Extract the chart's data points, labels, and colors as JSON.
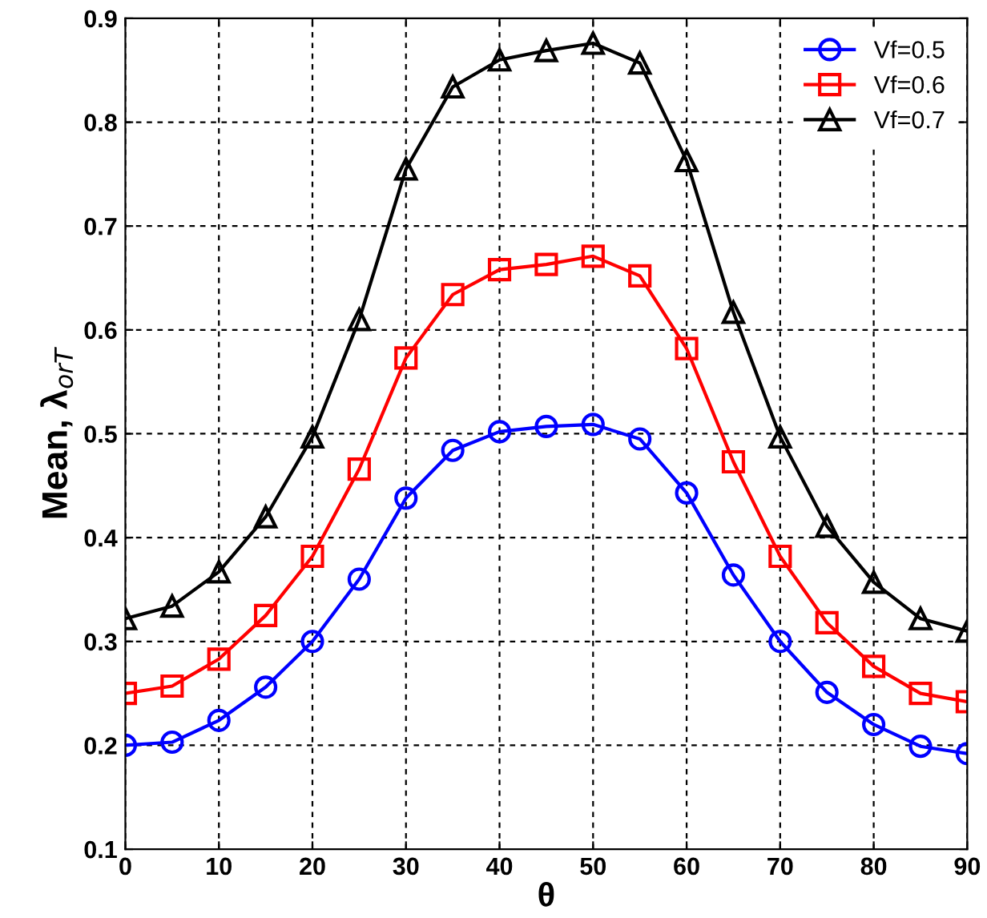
{
  "chart_data": {
    "type": "line",
    "xlabel": "θ",
    "ylabel": "Mean, λ$_{orT}$",
    "x": [
      0,
      5,
      10,
      15,
      20,
      25,
      30,
      35,
      40,
      45,
      50,
      55,
      60,
      65,
      70,
      75,
      80,
      85,
      90
    ],
    "series": [
      {
        "name": "Vf=0.5",
        "color": "#0000ff",
        "marker": "circle",
        "values": [
          0.2,
          0.203,
          0.224,
          0.256,
          0.3,
          0.36,
          0.438,
          0.484,
          0.502,
          0.507,
          0.509,
          0.495,
          0.443,
          0.364,
          0.3,
          0.251,
          0.22,
          0.199,
          0.192
        ]
      },
      {
        "name": "Vf=0.6",
        "color": "#ff0000",
        "marker": "square",
        "values": [
          0.25,
          0.257,
          0.283,
          0.325,
          0.382,
          0.466,
          0.573,
          0.634,
          0.658,
          0.663,
          0.671,
          0.652,
          0.582,
          0.473,
          0.382,
          0.318,
          0.276,
          0.25,
          0.242
        ]
      },
      {
        "name": "Vf=0.7",
        "color": "#000000",
        "marker": "triangle",
        "values": [
          0.322,
          0.334,
          0.367,
          0.42,
          0.497,
          0.61,
          0.755,
          0.834,
          0.86,
          0.869,
          0.876,
          0.857,
          0.763,
          0.617,
          0.497,
          0.411,
          0.357,
          0.322,
          0.31
        ]
      }
    ],
    "xlim": [
      0,
      90
    ],
    "xticks": [
      0,
      10,
      20,
      30,
      40,
      50,
      60,
      70,
      80,
      90
    ],
    "ylim": [
      0.1,
      0.9
    ],
    "yticks": [
      0.1,
      0.2,
      0.3,
      0.4,
      0.5,
      0.6,
      0.7,
      0.8,
      0.9
    ],
    "grid": true,
    "legend": "top right",
    "line_style": "solid"
  }
}
